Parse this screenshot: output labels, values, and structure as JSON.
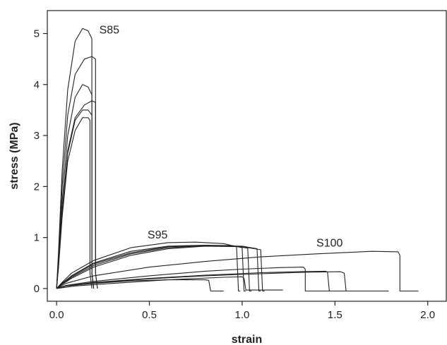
{
  "chart_data": {
    "type": "line",
    "title": "",
    "xlabel": "strain",
    "ylabel": "stress (MPa)",
    "xlim": [
      -0.05,
      2.1
    ],
    "ylim": [
      -0.25,
      5.45
    ],
    "xticks": [
      0.0,
      0.5,
      1.0,
      1.5,
      2.0
    ],
    "xtick_labels": [
      "0.0",
      "0.5",
      "1.0",
      "1.5",
      "2.0"
    ],
    "yticks": [
      0,
      1,
      2,
      3,
      4,
      5
    ],
    "ytick_labels": [
      "0",
      "1",
      "2",
      "3",
      "4",
      "5"
    ],
    "grid": false,
    "legend": "none",
    "line_color": "#222222",
    "annotations": [
      {
        "text": "S85",
        "x": 0.23,
        "y": 5.0
      },
      {
        "text": "S95",
        "x": 0.49,
        "y": 0.98
      },
      {
        "text": "S100",
        "x": 1.4,
        "y": 0.82
      }
    ],
    "series": [
      {
        "group": "S85",
        "x": [
          0,
          0.01,
          0.03,
          0.06,
          0.1,
          0.14,
          0.17,
          0.19,
          0.19,
          0.2
        ],
        "y": [
          0,
          0.7,
          2.3,
          3.9,
          4.85,
          5.1,
          5.05,
          4.9,
          0.3,
          0
        ]
      },
      {
        "group": "S85",
        "x": [
          0,
          0.01,
          0.03,
          0.06,
          0.1,
          0.15,
          0.19,
          0.21,
          0.21,
          0.22
        ],
        "y": [
          0,
          0.6,
          2.0,
          3.4,
          4.2,
          4.5,
          4.55,
          4.5,
          0.3,
          0
        ]
      },
      {
        "group": "S85",
        "x": [
          0,
          0.01,
          0.03,
          0.06,
          0.1,
          0.14,
          0.17,
          0.19,
          0.19,
          0.2
        ],
        "y": [
          0,
          0.5,
          1.7,
          3.0,
          3.75,
          4.0,
          3.95,
          3.8,
          0.3,
          0
        ]
      },
      {
        "group": "S85",
        "x": [
          0,
          0.01,
          0.03,
          0.06,
          0.1,
          0.15,
          0.19,
          0.21,
          0.21,
          0.22
        ],
        "y": [
          0,
          0.45,
          1.5,
          2.7,
          3.35,
          3.6,
          3.68,
          3.65,
          0.3,
          0
        ]
      },
      {
        "group": "S85",
        "x": [
          0,
          0.01,
          0.03,
          0.06,
          0.1,
          0.14,
          0.17,
          0.19,
          0.19,
          0.2
        ],
        "y": [
          0,
          0.45,
          1.5,
          2.65,
          3.3,
          3.5,
          3.5,
          3.4,
          0.3,
          0
        ]
      },
      {
        "group": "S85",
        "x": [
          0,
          0.01,
          0.03,
          0.06,
          0.1,
          0.14,
          0.17,
          0.18,
          0.18,
          0.19
        ],
        "y": [
          0,
          0.4,
          1.4,
          2.5,
          3.1,
          3.35,
          3.35,
          3.3,
          0.3,
          0
        ]
      },
      {
        "group": "S95",
        "x": [
          0,
          0.03,
          0.08,
          0.2,
          0.4,
          0.6,
          0.75,
          0.9,
          0.97,
          0.98,
          0.99
        ],
        "y": [
          0,
          0.12,
          0.3,
          0.55,
          0.8,
          0.9,
          0.91,
          0.88,
          0.82,
          -0.05,
          -0.05
        ]
      },
      {
        "group": "S95",
        "x": [
          0,
          0.03,
          0.08,
          0.2,
          0.4,
          0.6,
          0.8,
          0.95,
          1.0,
          1.01,
          1.02
        ],
        "y": [
          0,
          0.1,
          0.25,
          0.5,
          0.73,
          0.83,
          0.85,
          0.84,
          0.8,
          -0.05,
          -0.05
        ]
      },
      {
        "group": "S95",
        "x": [
          0,
          0.03,
          0.08,
          0.2,
          0.4,
          0.6,
          0.8,
          0.97,
          1.03,
          1.04,
          1.05
        ],
        "y": [
          0,
          0.1,
          0.24,
          0.48,
          0.7,
          0.82,
          0.84,
          0.83,
          0.79,
          -0.05,
          -0.05
        ]
      },
      {
        "group": "S95",
        "x": [
          0,
          0.03,
          0.08,
          0.2,
          0.4,
          0.6,
          0.8,
          1.0,
          1.08,
          1.09,
          1.1
        ],
        "y": [
          0,
          0.09,
          0.22,
          0.45,
          0.68,
          0.8,
          0.84,
          0.83,
          0.78,
          -0.05,
          -0.05
        ]
      },
      {
        "group": "S95",
        "x": [
          0,
          0.03,
          0.08,
          0.2,
          0.4,
          0.6,
          0.8,
          1.0,
          1.1,
          1.11,
          1.12
        ],
        "y": [
          0,
          0.08,
          0.2,
          0.42,
          0.65,
          0.78,
          0.83,
          0.82,
          0.76,
          -0.05,
          -0.05
        ]
      },
      {
        "group": "S100",
        "x": [
          0,
          0.05,
          0.2,
          0.5,
          0.8,
          1.1,
          1.4,
          1.7,
          1.84,
          1.85,
          1.85,
          1.95
        ],
        "y": [
          0,
          0.1,
          0.25,
          0.42,
          0.53,
          0.62,
          0.68,
          0.73,
          0.72,
          0.65,
          -0.05,
          -0.05
        ]
      },
      {
        "group": "S100",
        "x": [
          0,
          0.05,
          0.2,
          0.5,
          0.8,
          1.0,
          1.2,
          1.33,
          1.34,
          1.34,
          1.79
        ],
        "y": [
          0,
          0.06,
          0.14,
          0.25,
          0.34,
          0.38,
          0.41,
          0.42,
          0.38,
          -0.05,
          -0.05
        ]
      },
      {
        "group": "S100",
        "x": [
          0,
          0.05,
          0.2,
          0.5,
          0.8,
          1.1,
          1.3,
          1.45,
          1.46,
          1.47,
          1.52
        ],
        "y": [
          0,
          0.05,
          0.12,
          0.2,
          0.26,
          0.31,
          0.33,
          0.34,
          0.32,
          -0.05,
          -0.05
        ]
      },
      {
        "group": "S100",
        "x": [
          0,
          0.05,
          0.2,
          0.5,
          0.8,
          1.1,
          1.35,
          1.53,
          1.55,
          1.56,
          1.6
        ],
        "y": [
          0,
          0.05,
          0.11,
          0.19,
          0.25,
          0.29,
          0.32,
          0.33,
          0.3,
          -0.05,
          -0.05
        ]
      },
      {
        "group": "S100",
        "x": [
          0,
          0.05,
          0.2,
          0.4,
          0.6,
          0.8,
          0.82,
          0.83,
          0.9
        ],
        "y": [
          0,
          0.05,
          0.1,
          0.15,
          0.17,
          0.17,
          0.16,
          -0.05,
          -0.05
        ]
      },
      {
        "group": "S100",
        "x": [
          0,
          0.1,
          0.3,
          0.6,
          0.9,
          1.0,
          1.01,
          1.02,
          1.22
        ],
        "y": [
          0,
          0.05,
          0.1,
          0.17,
          0.22,
          0.23,
          0.2,
          -0.03,
          -0.03
        ]
      }
    ]
  }
}
